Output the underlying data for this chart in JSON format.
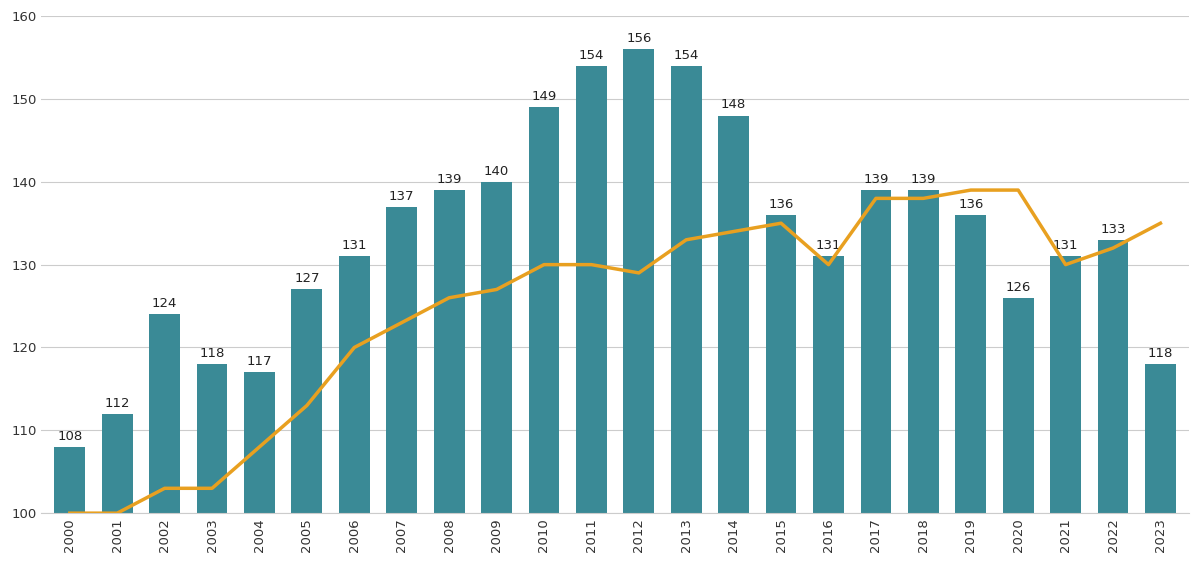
{
  "years": [
    2000,
    2001,
    2002,
    2003,
    2004,
    2005,
    2006,
    2007,
    2008,
    2009,
    2010,
    2011,
    2012,
    2013,
    2014,
    2015,
    2016,
    2017,
    2018,
    2019,
    2020,
    2021,
    2022,
    2023
  ],
  "bar_values": [
    108,
    112,
    124,
    118,
    117,
    127,
    131,
    137,
    139,
    140,
    149,
    154,
    156,
    154,
    148,
    136,
    131,
    139,
    139,
    136,
    126,
    131,
    133,
    118
  ],
  "line_values": [
    100,
    100,
    103,
    103,
    108,
    113,
    120,
    123,
    126,
    127,
    130,
    130,
    129,
    133,
    134,
    135,
    130,
    138,
    138,
    139,
    139,
    130,
    132,
    135
  ],
  "bar_color": "#3a8a96",
  "line_color": "#e8a020",
  "ylim_min": 100,
  "ylim_max": 160,
  "bar_bottom": 100,
  "yticks": [
    100,
    110,
    120,
    130,
    140,
    150,
    160
  ],
  "background_color": "#ffffff",
  "grid_color": "#cccccc",
  "label_fontsize": 9.5,
  "tick_fontsize": 9.5,
  "line_width": 2.5
}
